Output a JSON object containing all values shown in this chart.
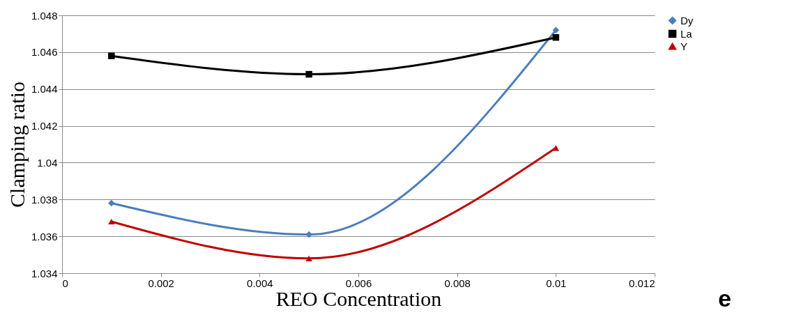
{
  "chart_data": {
    "type": "line",
    "xlabel": "REO Concentration",
    "ylabel": "Clamping ratio",
    "x": [
      0.001,
      0.005,
      0.01
    ],
    "series": [
      {
        "name": "Dy",
        "color": "#4a7ebb",
        "marker": "diamond",
        "values": [
          1.0378,
          1.0361,
          1.0472
        ]
      },
      {
        "name": "La",
        "color": "#000000",
        "marker": "square",
        "values": [
          1.0458,
          1.0448,
          1.0468
        ]
      },
      {
        "name": "Y",
        "color": "#c00000",
        "marker": "triangle",
        "values": [
          1.0368,
          1.0348,
          1.0408
        ]
      }
    ],
    "xlim": [
      0,
      0.012
    ],
    "xticks": [
      0,
      0.002,
      0.004,
      0.006,
      0.008,
      0.01,
      0.012
    ],
    "ylim": [
      1.034,
      1.048
    ],
    "yticks": [
      1.034,
      1.036,
      1.038,
      1.04,
      1.042,
      1.044,
      1.046,
      1.048
    ],
    "grid": "y",
    "legend": "right",
    "annotations": [
      "e"
    ]
  }
}
